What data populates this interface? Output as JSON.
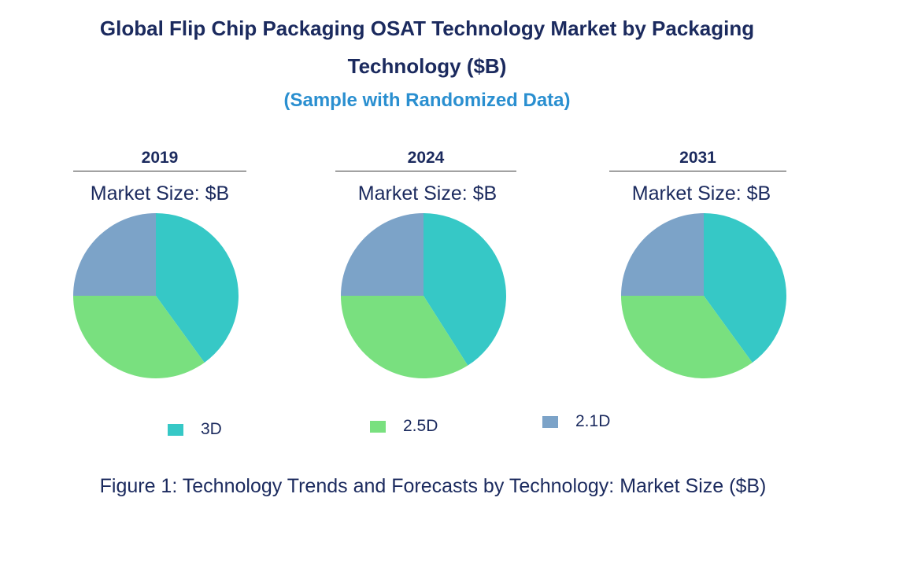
{
  "chart_title": "Global Flip Chip Packaging OSAT Technology Market by Packaging Technology ($B)",
  "chart_subtitle": "(Sample with Randomized Data)",
  "market_size_label": "Market Size: $B",
  "caption": "Figure 1: Technology Trends and Forecasts by Technology: Market Size ($B)",
  "colors": {
    "3D": "#36c8c6",
    "2.5D": "#79e07f",
    "2.1D": "#7ca3c8",
    "title": "#1b2a5e",
    "subtitle": "#2a8fd0"
  },
  "legend": [
    {
      "label": "3D",
      "color": "#36c8c6"
    },
    {
      "label": "2.5D",
      "color": "#79e07f"
    },
    {
      "label": "2.1D",
      "color": "#7ca3c8"
    }
  ],
  "chart_data": [
    {
      "type": "pie",
      "title": "2019",
      "labels": [
        "3D",
        "2.5D",
        "2.1D"
      ],
      "values": [
        40,
        35,
        25
      ]
    },
    {
      "type": "pie",
      "title": "2024",
      "labels": [
        "3D",
        "2.5D",
        "2.1D"
      ],
      "values": [
        41,
        34,
        25
      ]
    },
    {
      "type": "pie",
      "title": "2031",
      "labels": [
        "3D",
        "2.5D",
        "2.1D"
      ],
      "values": [
        40,
        35,
        25
      ]
    }
  ]
}
